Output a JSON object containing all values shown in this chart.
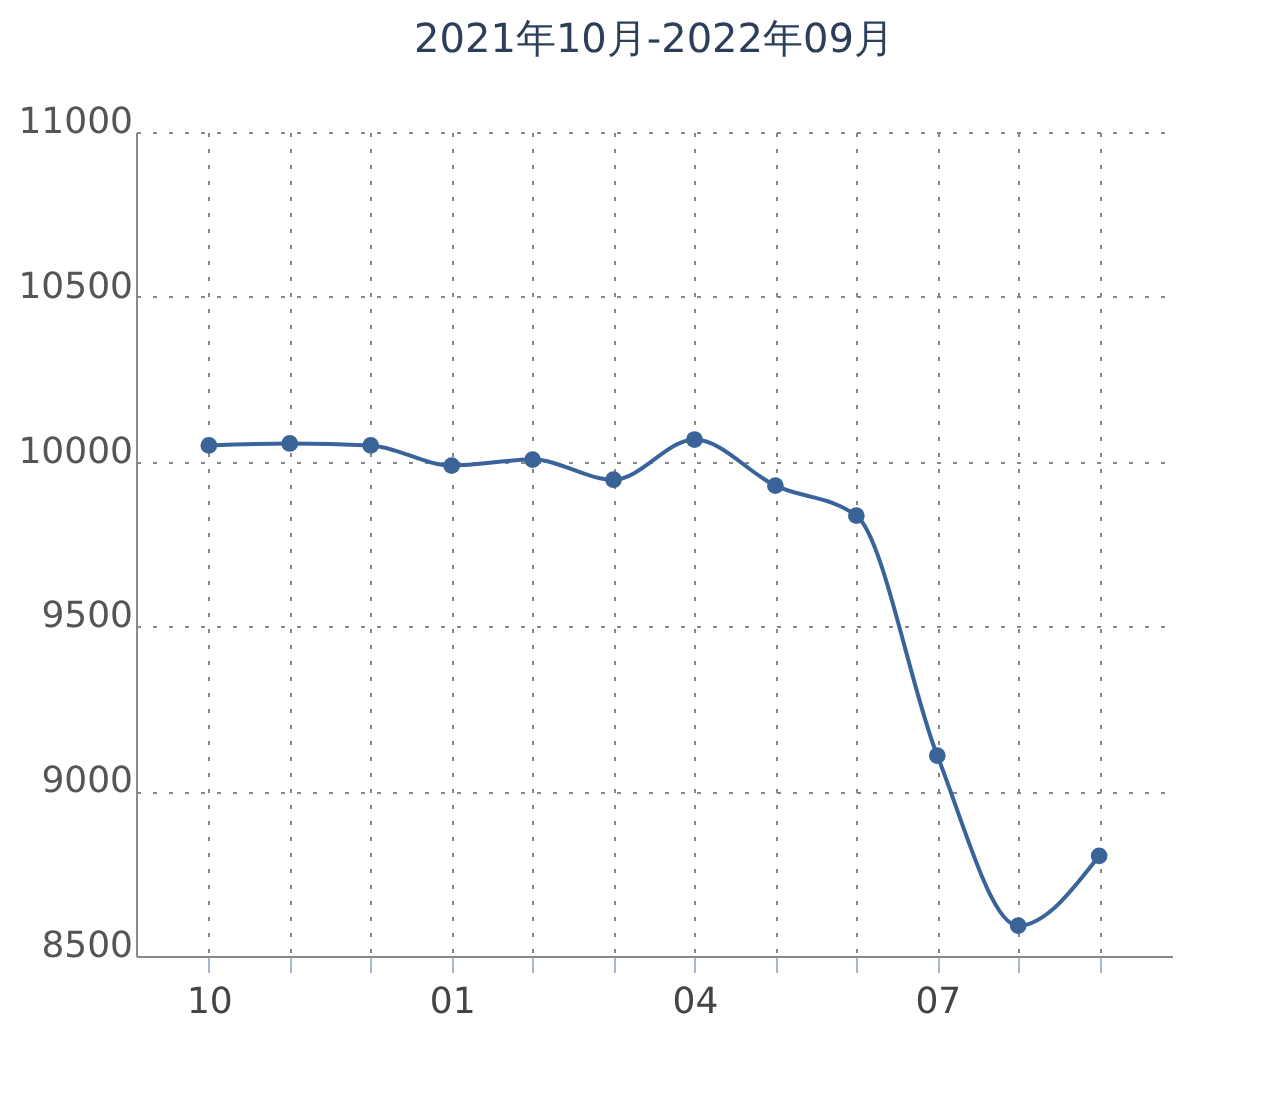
{
  "chart_data": {
    "type": "line",
    "title": "2021年10月-2022年09月",
    "categories": [
      "10",
      null,
      null,
      "01",
      null,
      null,
      "04",
      null,
      null,
      "07",
      null,
      null
    ],
    "series": [
      {
        "color": "#3a6399",
        "values": [
          10049,
          10055,
          10049,
          9988,
          10006,
          9945,
          10067,
          9927,
          9836,
          9108,
          8592,
          8804
        ]
      }
    ],
    "ylim": [
      8500,
      11000
    ],
    "yticks": [
      8500,
      9000,
      9500,
      10000,
      10500,
      11000
    ],
    "grid": true,
    "marker": "circle",
    "line_style": "solid"
  }
}
